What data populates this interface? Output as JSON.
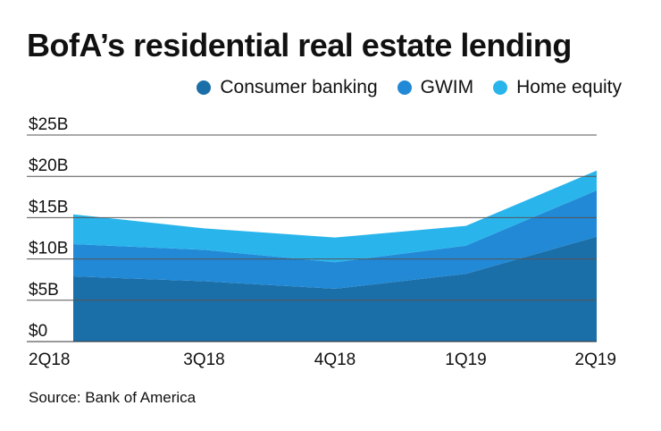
{
  "chart_data": {
    "type": "area",
    "stacked": true,
    "title": "BofA’s residential real estate lending",
    "categories": [
      "2Q18",
      "3Q18",
      "4Q18",
      "1Q19",
      "2Q19"
    ],
    "series": [
      {
        "name": "Consumer banking",
        "color": "#1b6fa8",
        "values": [
          7.9,
          7.3,
          6.4,
          8.2,
          12.7
        ]
      },
      {
        "name": "GWIM",
        "color": "#2189d6",
        "values": [
          3.9,
          3.8,
          3.2,
          3.4,
          5.6
        ]
      },
      {
        "name": "Home equity",
        "color": "#29b5ec",
        "values": [
          3.6,
          2.6,
          3.0,
          2.4,
          2.4
        ]
      }
    ],
    "ylim": [
      0,
      25
    ],
    "yticks": [
      "$0",
      "$5B",
      "$10B",
      "$15B",
      "$20B",
      "$25B"
    ],
    "ytick_values": [
      0,
      5,
      10,
      15,
      20,
      25
    ],
    "grid": true,
    "legend_position": "top-right",
    "source": "Source: Bank of America"
  }
}
